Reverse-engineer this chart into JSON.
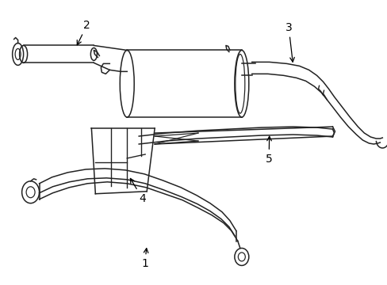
{
  "background_color": "#ffffff",
  "line_color": "#222222",
  "label_color": "#000000",
  "arrow_color": "#000000",
  "fig_width": 4.89,
  "fig_height": 3.6,
  "dpi": 100
}
